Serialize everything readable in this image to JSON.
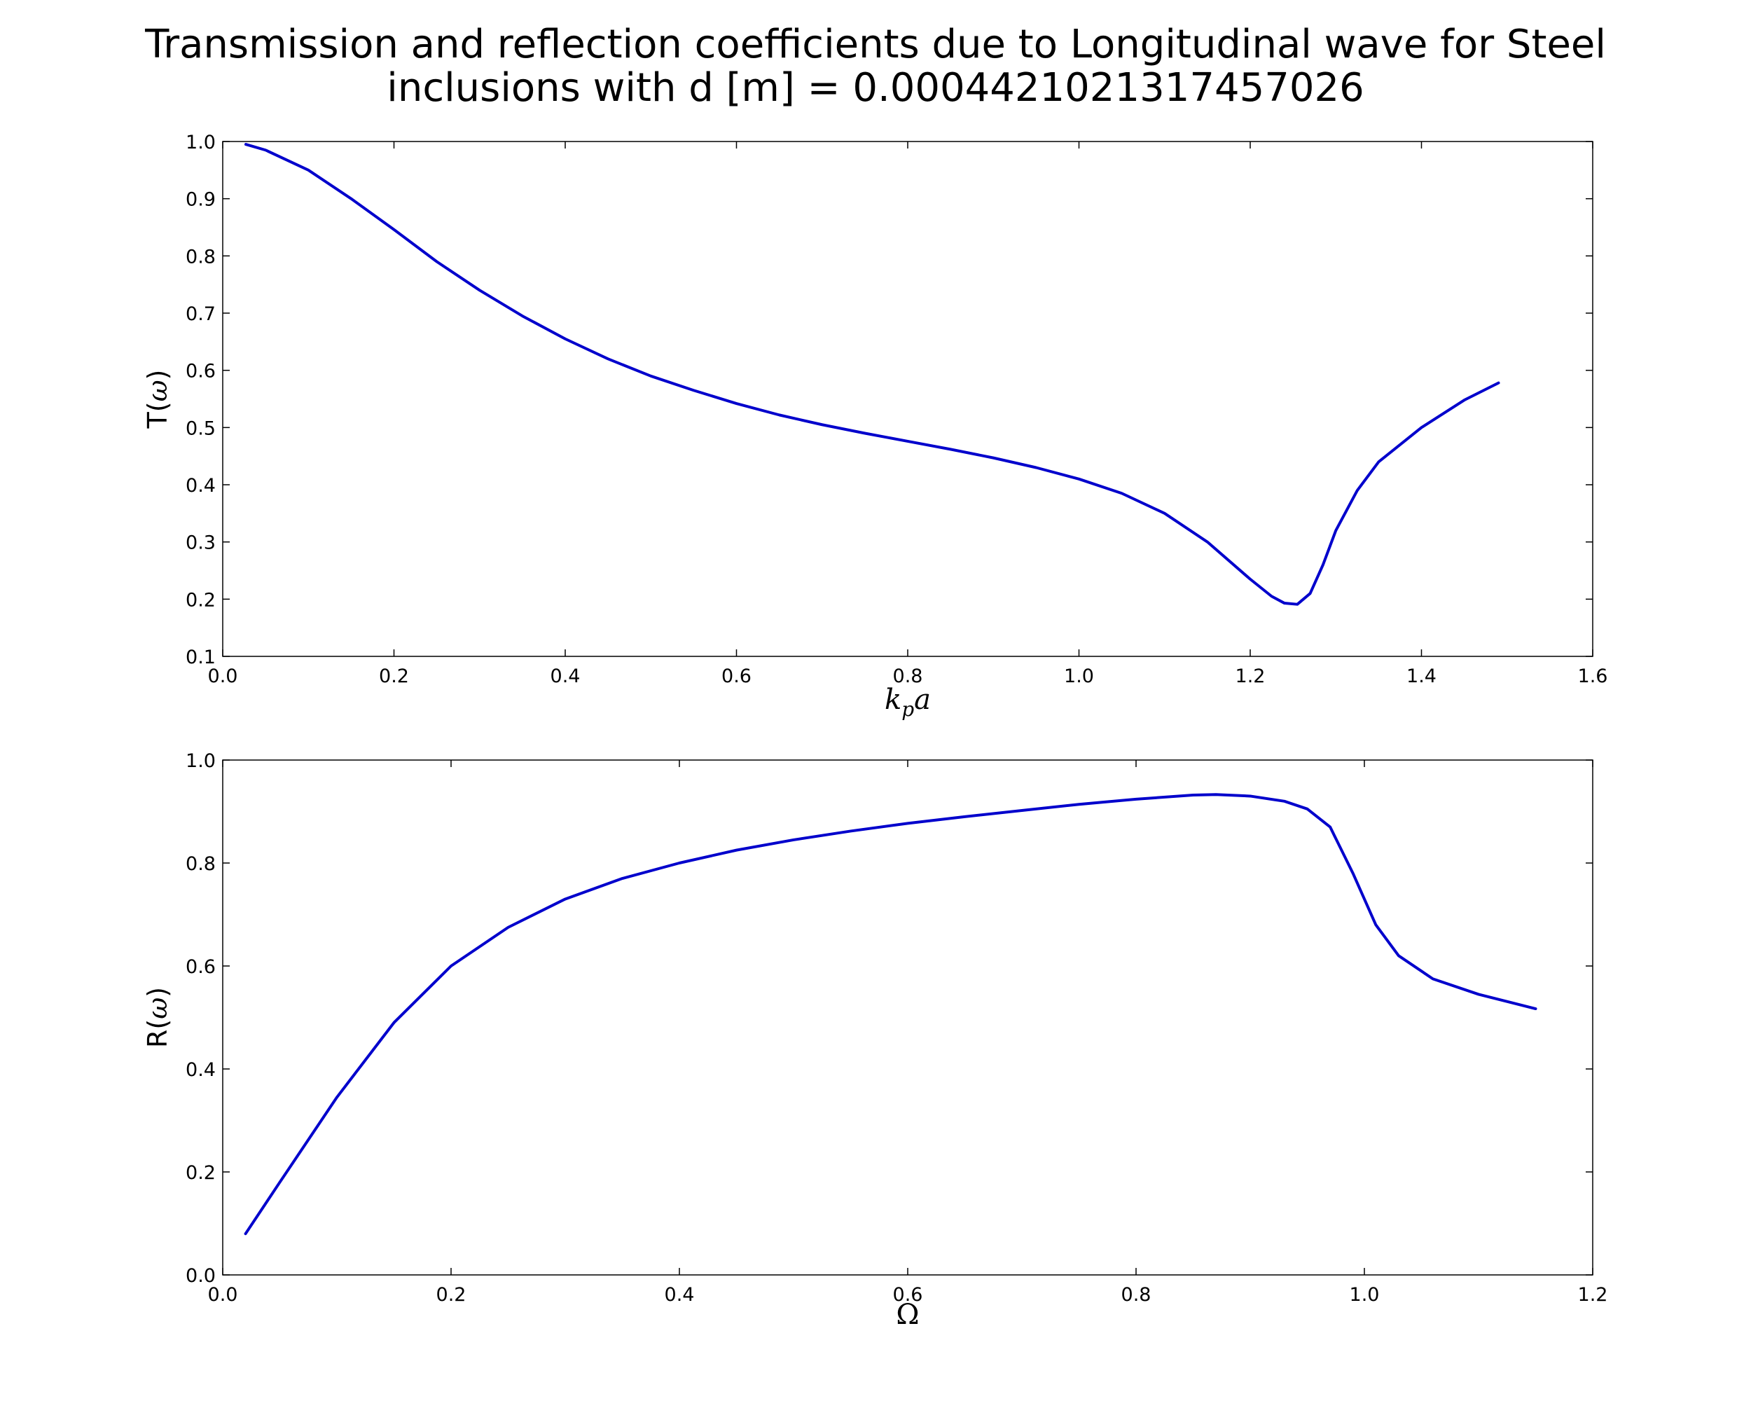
{
  "title_line_1": "Transmission and reflection coefficients due to Longitudinal wave for Steel",
  "title_line_2": "inclusions with d [m] = 0.0004421021317457026",
  "chart_data": [
    {
      "type": "line",
      "ylabel_prefix": "T(",
      "ylabel_symbol": "ω",
      "ylabel_suffix": ")",
      "xlabel_main": "k",
      "xlabel_sub": "p",
      "xlabel_tail": "a",
      "xlim": [
        0.0,
        1.6
      ],
      "ylim": [
        0.1,
        1.0
      ],
      "xticks": [
        "0.0",
        "0.2",
        "0.4",
        "0.6",
        "0.8",
        "1.0",
        "1.2",
        "1.4",
        "1.6"
      ],
      "yticks": [
        "0.1",
        "0.2",
        "0.3",
        "0.4",
        "0.5",
        "0.6",
        "0.7",
        "0.8",
        "0.9",
        "1.0"
      ],
      "grid": false,
      "line_color": "#0000cc",
      "series": [
        {
          "x": [
            0.027,
            0.05,
            0.1,
            0.15,
            0.2,
            0.25,
            0.3,
            0.35,
            0.4,
            0.45,
            0.5,
            0.55,
            0.6,
            0.65,
            0.7,
            0.75,
            0.8,
            0.85,
            0.9,
            0.95,
            1.0,
            1.05,
            1.1,
            1.15,
            1.2,
            1.225,
            1.24,
            1.255,
            1.27,
            1.285,
            1.3,
            1.325,
            1.35,
            1.4,
            1.45,
            1.49
          ],
          "y": [
            0.995,
            0.985,
            0.95,
            0.9,
            0.846,
            0.79,
            0.74,
            0.695,
            0.655,
            0.62,
            0.59,
            0.565,
            0.542,
            0.522,
            0.505,
            0.49,
            0.476,
            0.462,
            0.447,
            0.43,
            0.41,
            0.385,
            0.35,
            0.3,
            0.235,
            0.205,
            0.193,
            0.191,
            0.21,
            0.26,
            0.32,
            0.39,
            0.44,
            0.5,
            0.548,
            0.578
          ]
        }
      ]
    },
    {
      "type": "line",
      "ylabel_prefix": "R(",
      "ylabel_symbol": "ω",
      "ylabel_suffix": ")",
      "xlabel_main": "Ω",
      "xlim": [
        0.0,
        1.2
      ],
      "ylim": [
        0.0,
        1.0
      ],
      "xticks": [
        "0.0",
        "0.2",
        "0.4",
        "0.6",
        "0.8",
        "1.0",
        "1.2"
      ],
      "yticks": [
        "0.0",
        "0.2",
        "0.4",
        "0.6",
        "0.8",
        "1.0"
      ],
      "grid": false,
      "line_color": "#0000cc",
      "series": [
        {
          "x": [
            0.02,
            0.05,
            0.1,
            0.15,
            0.2,
            0.25,
            0.3,
            0.35,
            0.4,
            0.45,
            0.5,
            0.55,
            0.6,
            0.65,
            0.7,
            0.75,
            0.8,
            0.85,
            0.87,
            0.9,
            0.93,
            0.95,
            0.97,
            0.99,
            1.01,
            1.03,
            1.06,
            1.1,
            1.15
          ],
          "y": [
            0.08,
            0.18,
            0.345,
            0.49,
            0.6,
            0.675,
            0.73,
            0.77,
            0.8,
            0.825,
            0.845,
            0.862,
            0.877,
            0.89,
            0.902,
            0.914,
            0.924,
            0.932,
            0.933,
            0.93,
            0.92,
            0.905,
            0.87,
            0.78,
            0.68,
            0.62,
            0.575,
            0.545,
            0.517
          ]
        }
      ]
    }
  ]
}
